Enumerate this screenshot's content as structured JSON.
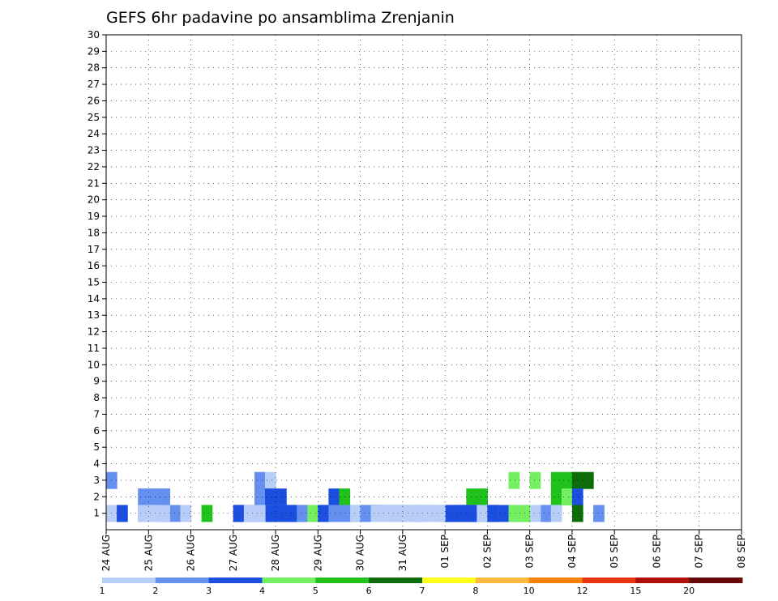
{
  "chart_data": {
    "type": "heatmap",
    "title": "GEFS 6hr padavine po ansamblima Zrenjanin",
    "xlabel": "",
    "ylabel": "",
    "x_start": "24 AUG",
    "x_steps_per_day": 4,
    "x_ticks": [
      "24 AUG",
      "25 AUG",
      "26 AUG",
      "27 AUG",
      "28 AUG",
      "29 AUG",
      "30 AUG",
      "31 AUG",
      "01 SEP",
      "02 SEP",
      "03 SEP",
      "04 SEP",
      "05 SEP",
      "06 SEP",
      "07 SEP",
      "08 SEP"
    ],
    "y_ticks": [
      1,
      2,
      3,
      4,
      5,
      6,
      7,
      8,
      9,
      10,
      11,
      12,
      13,
      14,
      15,
      16,
      17,
      18,
      19,
      20,
      21,
      22,
      23,
      24,
      25,
      26,
      27,
      28,
      29,
      30
    ],
    "ylim": [
      0,
      30
    ],
    "grid": true,
    "legend": "bottom",
    "colorbar": {
      "bounds": [
        1,
        2,
        3,
        4,
        5,
        6,
        7,
        8,
        10,
        12,
        15,
        20
      ],
      "colors": [
        "#b8cdf8",
        "#6590ef",
        "#1c4ee0",
        "#74ef61",
        "#1fc11a",
        "#0c6d0a",
        "#fffe1a",
        "#fbb93d",
        "#f98108",
        "#e9350f",
        "#b0100b",
        "#6a0909"
      ]
    },
    "cells": [
      [
        3,
        0,
        2
      ],
      [
        3,
        14,
        2
      ],
      [
        3,
        15,
        1
      ],
      [
        3,
        38,
        4
      ],
      [
        3,
        40,
        4
      ],
      [
        3,
        42,
        5
      ],
      [
        3,
        43,
        5
      ],
      [
        3,
        44,
        6
      ],
      [
        3,
        45,
        6
      ],
      [
        2,
        3,
        2
      ],
      [
        2,
        4,
        2
      ],
      [
        2,
        5,
        2
      ],
      [
        2,
        14,
        2
      ],
      [
        2,
        15,
        3
      ],
      [
        2,
        16,
        3
      ],
      [
        2,
        21,
        3
      ],
      [
        2,
        22,
        5
      ],
      [
        2,
        34,
        5
      ],
      [
        2,
        35,
        5
      ],
      [
        2,
        42,
        5
      ],
      [
        2,
        43,
        4
      ],
      [
        2,
        44,
        3
      ],
      [
        1,
        0,
        1
      ],
      [
        1,
        1,
        1
      ],
      [
        1,
        3,
        2
      ],
      [
        1,
        5,
        3
      ],
      [
        1,
        6,
        2
      ],
      [
        1,
        14,
        1
      ],
      [
        1,
        25,
        1
      ],
      [
        1,
        26,
        1
      ],
      [
        1,
        33,
        1
      ],
      [
        1,
        44,
        6
      ],
      [
        1,
        46,
        1
      ],
      [
        1,
        1,
        3
      ],
      [
        1,
        12,
        7
      ],
      [
        1,
        13,
        2
      ],
      [
        1,
        14,
        3
      ],
      [
        1,
        24,
        4
      ],
      [
        1,
        25,
        4
      ],
      [
        1,
        29,
        5
      ],
      [
        1,
        33,
        3
      ],
      [
        1,
        35,
        5
      ],
      [
        1,
        12,
        4
      ],
      [
        1,
        13,
        1
      ],
      [
        1,
        17,
        4
      ],
      [
        1,
        18,
        4
      ],
      [
        1,
        20,
        3
      ],
      [
        1,
        25,
        5
      ],
      [
        1,
        26,
        3
      ],
      [
        1,
        33,
        5
      ],
      [
        1,
        42,
        2
      ],
      [
        1,
        46,
        2
      ],
      [
        1,
        7,
        1
      ],
      [
        1,
        12,
        3
      ],
      [
        1,
        13,
        1
      ],
      [
        1,
        14,
        1
      ],
      [
        1,
        18,
        2
      ],
      [
        1,
        20,
        1
      ],
      [
        1,
        25,
        2
      ],
      [
        1,
        26,
        1
      ],
      [
        1,
        36,
        1
      ],
      [
        1,
        12,
        2
      ],
      [
        1,
        13,
        1
      ],
      [
        1,
        20,
        2
      ],
      [
        1,
        25,
        2
      ],
      [
        1,
        26,
        1
      ],
      [
        1,
        41,
        2
      ],
      [
        1,
        42,
        1
      ],
      [
        1,
        9,
        5
      ],
      [
        1,
        12,
        2
      ],
      [
        1,
        14,
        3
      ],
      [
        1,
        17,
        3
      ],
      [
        1,
        20,
        1
      ],
      [
        1,
        41,
        2
      ],
      [
        1,
        3,
        1
      ],
      [
        1,
        4,
        1
      ],
      [
        1,
        12,
        1
      ],
      [
        1,
        20,
        2
      ],
      [
        1,
        23,
        6
      ],
      [
        1,
        34,
        2
      ],
      [
        1,
        35,
        2
      ],
      [
        1,
        38,
        2
      ],
      [
        1,
        39,
        2
      ],
      [
        1,
        42,
        1
      ],
      [
        1,
        4,
        1
      ],
      [
        1,
        12,
        1
      ],
      [
        1,
        15,
        2
      ],
      [
        1,
        16,
        2
      ],
      [
        1,
        22,
        1
      ],
      [
        1,
        23,
        1
      ],
      [
        1,
        24,
        1
      ],
      [
        1,
        30,
        1
      ],
      [
        1,
        31,
        1
      ],
      [
        1,
        32,
        1
      ],
      [
        1,
        33,
        1
      ],
      [
        1,
        34,
        1
      ],
      [
        1,
        35,
        2
      ],
      [
        1,
        36,
        2
      ],
      [
        1,
        40,
        1
      ],
      [
        1,
        14,
        2
      ],
      [
        1,
        15,
        2
      ],
      [
        1,
        20,
        2
      ],
      [
        1,
        24,
        1
      ],
      [
        1,
        25,
        3
      ],
      [
        1,
        33,
        1
      ],
      [
        1,
        34,
        1
      ],
      [
        1,
        35,
        2
      ],
      [
        1,
        36,
        3
      ],
      [
        1,
        37,
        3
      ],
      [
        1,
        38,
        4
      ],
      [
        1,
        39,
        4
      ],
      [
        1,
        14,
        1
      ],
      [
        1,
        15,
        1
      ],
      [
        1,
        16,
        4
      ],
      [
        1,
        19,
        1
      ],
      [
        1,
        24,
        1
      ],
      [
        1,
        25,
        2
      ],
      [
        1,
        26,
        1
      ],
      [
        1,
        27,
        1
      ],
      [
        1,
        28,
        1
      ],
      [
        1,
        29,
        1
      ],
      [
        1,
        30,
        1
      ],
      [
        1,
        14,
        4
      ],
      [
        1,
        15,
        4
      ],
      [
        1,
        24,
        2
      ],
      [
        1,
        25,
        2
      ],
      [
        1,
        26,
        2
      ],
      [
        1,
        27,
        2
      ],
      [
        1,
        29,
        1
      ],
      [
        1,
        30,
        1
      ],
      [
        1,
        32,
        2
      ],
      [
        1,
        33,
        2
      ],
      [
        1,
        34,
        2
      ],
      [
        1,
        35,
        2
      ],
      [
        1,
        36,
        1
      ],
      [
        1,
        5,
        3
      ],
      [
        1,
        15,
        2
      ],
      [
        1,
        25,
        1
      ],
      [
        1,
        26,
        1
      ],
      [
        1,
        27,
        1
      ],
      [
        1,
        28,
        1
      ],
      [
        1,
        29,
        1
      ],
      [
        1,
        30,
        1
      ],
      [
        1,
        31,
        2
      ],
      [
        1,
        32,
        3
      ],
      [
        1,
        33,
        3
      ],
      [
        1,
        34,
        3
      ],
      [
        1,
        35,
        3
      ],
      [
        1,
        36,
        3
      ],
      [
        1,
        15,
        3
      ],
      [
        1,
        25,
        1
      ],
      [
        1,
        26,
        1
      ],
      [
        1,
        27,
        3
      ],
      [
        1,
        28,
        3
      ],
      [
        1,
        29,
        3
      ],
      [
        1,
        30,
        1
      ],
      [
        1,
        31,
        1
      ],
      [
        1,
        32,
        3
      ],
      [
        1,
        33,
        3
      ],
      [
        1,
        34,
        3
      ],
      [
        1,
        35,
        1
      ],
      [
        1,
        36,
        3
      ],
      [
        1,
        4,
        1
      ],
      [
        1,
        5,
        1
      ],
      [
        1,
        12,
        3
      ],
      [
        1,
        13,
        3
      ],
      [
        1,
        14,
        3
      ],
      [
        1,
        15,
        3
      ],
      [
        1,
        16,
        3
      ],
      [
        1,
        17,
        2
      ],
      [
        1,
        18,
        2
      ],
      [
        1,
        25,
        1
      ],
      [
        1,
        26,
        1
      ],
      [
        1,
        27,
        1
      ],
      [
        1,
        28,
        1
      ],
      [
        1,
        30,
        1
      ],
      [
        1,
        13,
        1
      ],
      [
        1,
        14,
        1
      ],
      [
        1,
        17,
        3
      ],
      [
        1,
        18,
        2
      ],
      [
        1,
        19,
        4
      ],
      [
        1,
        20,
        3
      ],
      [
        1,
        21,
        2
      ],
      [
        1,
        22,
        2
      ],
      [
        1,
        26,
        1
      ],
      [
        1,
        27,
        1
      ],
      [
        1,
        28,
        1
      ],
      [
        1,
        29,
        1
      ],
      [
        1,
        30,
        1
      ],
      [
        1,
        31,
        1
      ]
    ]
  },
  "legend_labels": [
    "1",
    "2",
    "3",
    "4",
    "5",
    "6",
    "7",
    "8",
    "10",
    "12",
    "15",
    "20"
  ]
}
